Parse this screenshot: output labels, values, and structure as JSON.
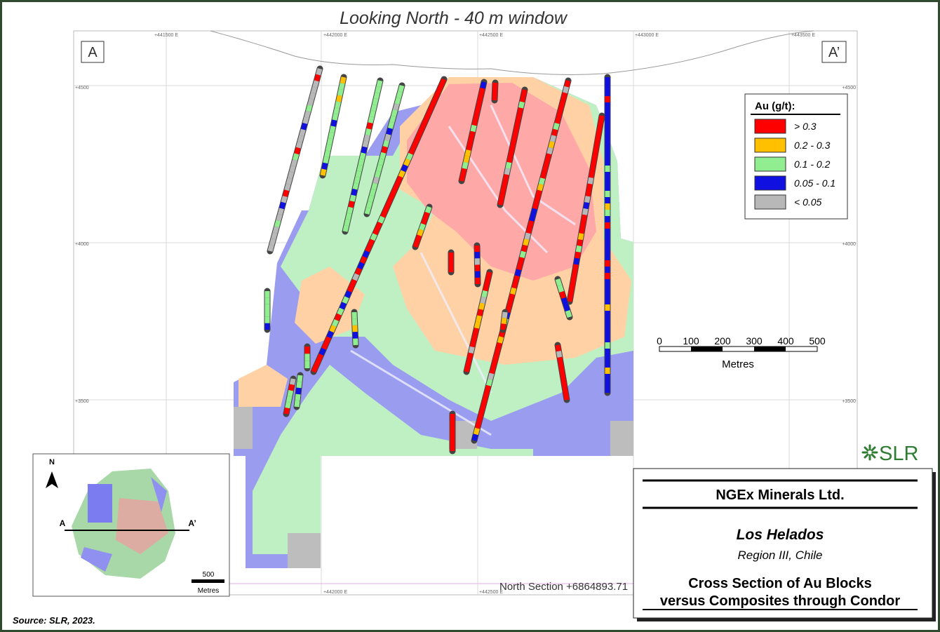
{
  "title": "Looking North - 40 m window",
  "section_labels": [
    "A",
    "A’"
  ],
  "easting_labels": [
    "+441500 E",
    "+442000 E",
    "+442500 E",
    "+443000 E",
    "+443500 E"
  ],
  "elevation_labels": [
    "+4500",
    "+4000",
    "+3500"
  ],
  "legend": {
    "title": "Au (g/t):",
    "items": [
      {
        "label": "> 0.3",
        "color": "#ff0000"
      },
      {
        "label": "0.2 - 0.3",
        "color": "#ffc000"
      },
      {
        "label": "0.1 - 0.2",
        "color": "#90ee90"
      },
      {
        "label": "0.05 - 0.1",
        "color": "#1010e0"
      },
      {
        "label": "< 0.05",
        "color": "#b8b8b8"
      }
    ]
  },
  "scale_bar": {
    "ticks": [
      "0",
      "100",
      "200",
      "300",
      "400",
      "500"
    ],
    "unit": "Metres"
  },
  "north_section": "North Section +6864893.71",
  "inset": {
    "north": "N",
    "labels": [
      "A",
      "A’"
    ],
    "scale": "500",
    "unit": "Metres"
  },
  "logo": "SLR",
  "title_block": {
    "company": "NGEx Minerals Ltd.",
    "project": "Los Helados",
    "region": "Region III, Chile",
    "caption": [
      "Cross Section of Au Blocks",
      "versus Composites through Condor"
    ]
  },
  "source": "Source:  SLR, 2023."
}
